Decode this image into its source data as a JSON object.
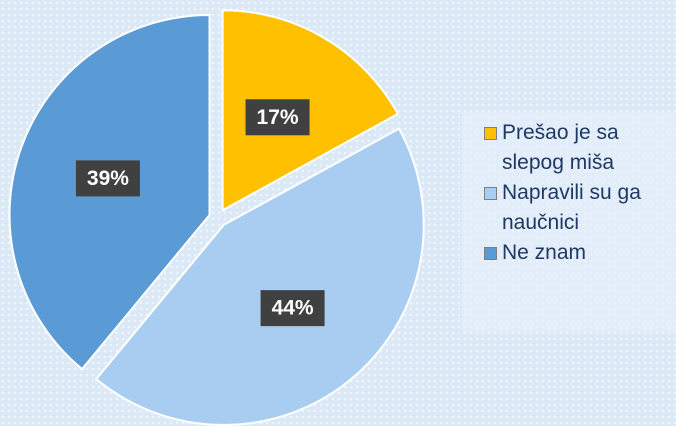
{
  "chart_data": {
    "type": "pie",
    "categories": [
      "Prešao je sa slepog miša",
      "Napravili su ga naučnici",
      "Ne znam"
    ],
    "values": [
      17,
      44,
      39
    ],
    "value_labels": [
      "17%",
      "44%",
      "39%"
    ],
    "colors": [
      "#ffc000",
      "#a9cdf0",
      "#5b9bd5"
    ],
    "legend": "right"
  }
}
